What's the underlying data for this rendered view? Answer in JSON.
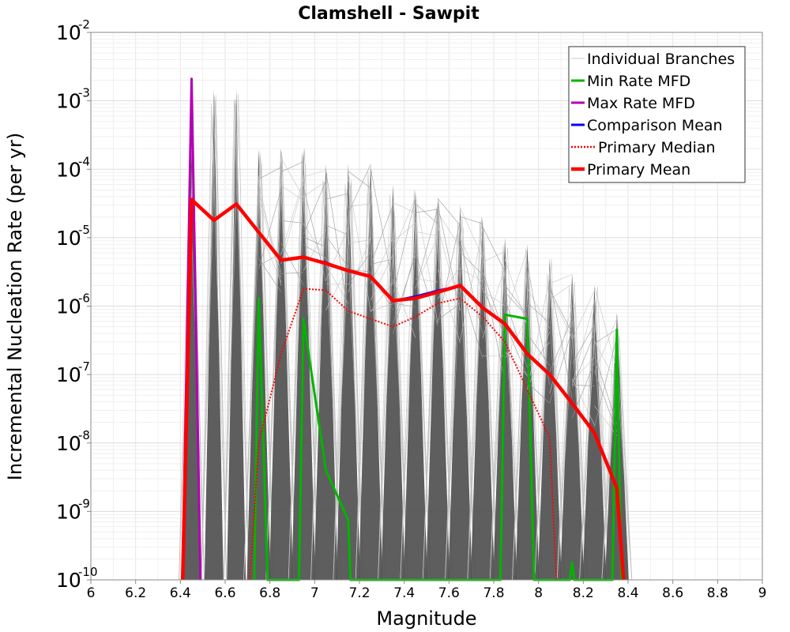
{
  "chart_data": {
    "type": "line",
    "title": "Clamshell - Sawpit",
    "xlabel": "Magnitude",
    "ylabel": "Incremental Nucleation Rate (per yr)",
    "xlim": [
      6,
      9
    ],
    "ylim": [
      1e-10,
      0.01
    ],
    "yscale": "log",
    "grid": true,
    "legend_position": "top-right",
    "x_ticks": [
      "6",
      "6.2",
      "6.4",
      "6.6",
      "6.8",
      "7",
      "7.2",
      "7.4",
      "7.6",
      "7.8",
      "8",
      "8.2",
      "8.4",
      "8.6",
      "8.8",
      "9"
    ],
    "y_ticks": [
      {
        "base": "10",
        "exp": "-10"
      },
      {
        "base": "10",
        "exp": "-9"
      },
      {
        "base": "10",
        "exp": "-8"
      },
      {
        "base": "10",
        "exp": "-7"
      },
      {
        "base": "10",
        "exp": "-6"
      },
      {
        "base": "10",
        "exp": "-5"
      },
      {
        "base": "10",
        "exp": "-4"
      },
      {
        "base": "10",
        "exp": "-3"
      },
      {
        "base": "10",
        "exp": "-2"
      }
    ],
    "individual_branches_color": "#505050",
    "individual_branches_spikes": [
      {
        "x": 6.45,
        "peak": 0.00021
      },
      {
        "x": 6.55,
        "peak": 0.0015
      },
      {
        "x": 6.65,
        "peak": 0.0015
      },
      {
        "x": 6.75,
        "peak": 0.0002
      },
      {
        "x": 6.85,
        "peak": 0.0002
      },
      {
        "x": 6.95,
        "peak": 0.0002
      },
      {
        "x": 7.05,
        "peak": 0.00012
      },
      {
        "x": 7.15,
        "peak": 0.00012
      },
      {
        "x": 7.25,
        "peak": 0.00012
      },
      {
        "x": 7.35,
        "peak": 6e-05
      },
      {
        "x": 7.45,
        "peak": 5e-05
      },
      {
        "x": 7.55,
        "peak": 4e-05
      },
      {
        "x": 7.65,
        "peak": 3e-05
      },
      {
        "x": 7.75,
        "peak": 2e-05
      },
      {
        "x": 7.85,
        "peak": 1e-05
      },
      {
        "x": 7.95,
        "peak": 8e-06
      },
      {
        "x": 8.05,
        "peak": 5e-06
      },
      {
        "x": 8.15,
        "peak": 3e-06
      },
      {
        "x": 8.25,
        "peak": 2e-06
      },
      {
        "x": 8.35,
        "peak": 8e-07
      }
    ],
    "series": [
      {
        "name": "Individual Branches",
        "color": "#c8c8c8",
        "style": "thin",
        "x": [],
        "y": []
      },
      {
        "name": "Min Rate MFD",
        "color": "#00b400",
        "style": "solid",
        "x": [
          6.73,
          6.75,
          6.79,
          6.93,
          6.95,
          7.05,
          7.15,
          7.16,
          7.83,
          7.85,
          7.95,
          7.98,
          8.14,
          8.15,
          8.16,
          8.33,
          8.35,
          8.37
        ],
        "y": [
          1e-10,
          1.3e-06,
          1e-10,
          1e-10,
          6.5e-07,
          4e-09,
          7.5e-10,
          1e-10,
          1e-10,
          7.5e-07,
          6.5e-07,
          1e-10,
          1e-10,
          1.8e-10,
          1e-10,
          1e-10,
          4.5e-07,
          1e-10
        ]
      },
      {
        "name": "Max Rate MFD",
        "color": "#b400b4",
        "style": "solid",
        "x": [
          6.41,
          6.45,
          6.49
        ],
        "y": [
          1e-10,
          0.0021,
          1e-10
        ]
      },
      {
        "name": "Comparison Mean",
        "color": "#0000ff",
        "style": "solid",
        "x": [
          6.41,
          6.45,
          6.55,
          6.65,
          6.75,
          6.85,
          6.95,
          7.05,
          7.15,
          7.25,
          7.35,
          7.45,
          7.55,
          7.65,
          7.75,
          7.85,
          7.95,
          8.05,
          8.15,
          8.25,
          8.35,
          8.38
        ],
        "y": [
          1e-10,
          3.6e-05,
          1.8e-05,
          3.1e-05,
          1.2e-05,
          4.7e-06,
          5.2e-06,
          4.4e-06,
          3.3e-06,
          2.7e-06,
          1.2e-06,
          1.4e-06,
          1.7e-06,
          2e-06,
          9.5e-07,
          5.5e-07,
          2e-07,
          1e-07,
          3.8e-08,
          1.4e-08,
          2.2e-09,
          1e-10
        ]
      },
      {
        "name": "Primary Median",
        "color": "#ff0000",
        "style": "dotted",
        "x": [
          6.71,
          6.75,
          6.85,
          6.95,
          7.05,
          7.15,
          7.25,
          7.35,
          7.45,
          7.55,
          7.65,
          7.75,
          7.85,
          7.95,
          8.05,
          8.08
        ],
        "y": [
          1e-10,
          1e-08,
          2e-07,
          1.8e-06,
          1.7e-06,
          8.5e-07,
          6.5e-07,
          5e-07,
          7e-07,
          1.1e-06,
          1.3e-06,
          7e-07,
          3e-07,
          6e-08,
          1.2e-08,
          1e-10
        ]
      },
      {
        "name": "Primary Mean",
        "color": "#ff0000",
        "style": "thick",
        "x": [
          6.41,
          6.45,
          6.55,
          6.65,
          6.75,
          6.85,
          6.95,
          7.05,
          7.15,
          7.25,
          7.35,
          7.45,
          7.55,
          7.65,
          7.75,
          7.85,
          7.95,
          8.05,
          8.15,
          8.25,
          8.35,
          8.38
        ],
        "y": [
          1e-10,
          3.6e-05,
          1.8e-05,
          3.1e-05,
          1.2e-05,
          4.7e-06,
          5.2e-06,
          4.2e-06,
          3.3e-06,
          2.7e-06,
          1.2e-06,
          1.3e-06,
          1.6e-06,
          2e-06,
          9.5e-07,
          5.5e-07,
          2e-07,
          1e-07,
          3.8e-08,
          1.4e-08,
          2.2e-09,
          1e-10
        ]
      }
    ]
  }
}
